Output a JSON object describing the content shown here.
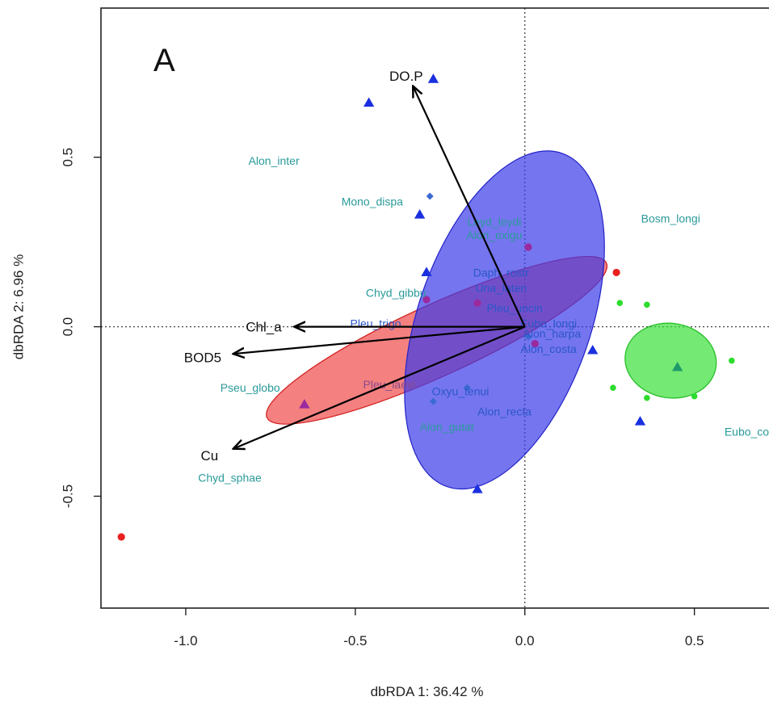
{
  "chart_data": {
    "type": "scatter",
    "panel_label": "A",
    "xlabel": "dbRDA 1: 36.42 %",
    "ylabel": "dbRDA 2: 6.96 %",
    "xlim": [
      -1.25,
      0.72
    ],
    "ylim": [
      -0.83,
      0.94
    ],
    "x_ticks": [
      -1.0,
      -0.5,
      0.0,
      0.5
    ],
    "x_tick_labels": [
      "-1.0",
      "-0.5",
      "0.0",
      "0.5"
    ],
    "y_ticks": [
      -0.5,
      0.0,
      0.5
    ],
    "y_tick_labels": [
      "-0.5",
      "0.0",
      "0.5"
    ],
    "origin_lines": true,
    "colors": {
      "red_group": "#e8211f",
      "blue_group": "#1a30e0",
      "green_group": "#2ddc2d",
      "purple_site": "#9a2a9e",
      "species_text": "#2a9a9a",
      "species_text_dark": "#2a57c8",
      "arrow": "#000000"
    },
    "ellipses": [
      {
        "group": "red",
        "cx": -0.26,
        "cy": -0.04,
        "rx": 0.55,
        "ry": 0.105,
        "angle_deg": 24.5,
        "fill": "#ef4a4a",
        "stroke": "#d21c1c"
      },
      {
        "group": "blue",
        "cx": -0.06,
        "cy": 0.02,
        "rx": 0.255,
        "ry": 0.52,
        "angle_deg": -19,
        "fill": "#3a3ae8",
        "stroke": "#2222c8"
      },
      {
        "group": "green",
        "cx": 0.43,
        "cy": -0.1,
        "rx": 0.135,
        "ry": 0.11,
        "angle_deg": -8,
        "fill": "#39e039",
        "stroke": "#22bb22"
      }
    ],
    "vectors": [
      {
        "label": "DO.P",
        "x": -0.33,
        "y": 0.71,
        "label_x": -0.35,
        "label_y": 0.74
      },
      {
        "label": "Chl_a",
        "x": -0.68,
        "y": 0.0,
        "label_x": -0.77,
        "label_y": 0.0
      },
      {
        "label": "BOD5",
        "x": -0.86,
        "y": -0.08,
        "label_x": -0.95,
        "label_y": -0.09
      },
      {
        "label": "Cu",
        "x": -0.86,
        "y": -0.36,
        "label_x": -0.93,
        "label_y": -0.38
      }
    ],
    "sites": [
      {
        "group": "blue",
        "shape": "triangle",
        "x": -0.27,
        "y": 0.73
      },
      {
        "group": "blue",
        "shape": "triangle",
        "x": -0.46,
        "y": 0.66
      },
      {
        "group": "blue",
        "shape": "triangle",
        "x": -0.31,
        "y": 0.33
      },
      {
        "group": "blue",
        "shape": "triangle",
        "x": -0.29,
        "y": 0.16
      },
      {
        "group": "blue",
        "shape": "triangle",
        "x": 0.2,
        "y": -0.07
      },
      {
        "group": "blue",
        "shape": "triangle",
        "x": 0.34,
        "y": -0.28
      },
      {
        "group": "blue",
        "shape": "triangle",
        "x": -0.14,
        "y": -0.48
      },
      {
        "group": "green",
        "shape": "triangle",
        "x": 0.45,
        "y": -0.12
      },
      {
        "group": "purple",
        "shape": "triangle",
        "x": -0.65,
        "y": -0.23
      },
      {
        "group": "red",
        "shape": "circle",
        "x": 0.27,
        "y": 0.16
      },
      {
        "group": "red",
        "shape": "circle",
        "x": -1.19,
        "y": -0.62
      },
      {
        "group": "green",
        "shape": "circle",
        "x": 0.28,
        "y": 0.07
      },
      {
        "group": "green",
        "shape": "circle",
        "x": 0.36,
        "y": 0.065
      },
      {
        "group": "green",
        "shape": "circle",
        "x": 0.61,
        "y": -0.1
      },
      {
        "group": "green",
        "shape": "circle",
        "x": 0.26,
        "y": -0.18
      },
      {
        "group": "green",
        "shape": "circle",
        "x": 0.36,
        "y": -0.21
      },
      {
        "group": "green",
        "shape": "circle",
        "x": 0.5,
        "y": -0.205
      },
      {
        "group": "purple",
        "shape": "circle",
        "x": 0.01,
        "y": 0.235
      },
      {
        "group": "purple",
        "shape": "circle",
        "x": -0.29,
        "y": 0.08
      },
      {
        "group": "purple",
        "shape": "circle",
        "x": -0.14,
        "y": 0.07
      },
      {
        "group": "purple",
        "shape": "circle",
        "x": 0.03,
        "y": -0.05
      },
      {
        "group": "blue",
        "shape": "diamond",
        "x": -0.28,
        "y": 0.385
      },
      {
        "group": "blue",
        "shape": "diamond",
        "x": 0.01,
        "y": -0.03
      },
      {
        "group": "blue",
        "shape": "diamond",
        "x": -0.27,
        "y": -0.22
      },
      {
        "group": "blue",
        "shape": "diamond",
        "x": -0.17,
        "y": -0.18
      }
    ],
    "species": [
      {
        "label": "Alon_inter",
        "x": -0.74,
        "y": 0.49,
        "tone": "light"
      },
      {
        "label": "Mono_dispa",
        "x": -0.45,
        "y": 0.37,
        "tone": "light"
      },
      {
        "label": "Leyd_leydi",
        "x": -0.09,
        "y": 0.31,
        "tone": "light"
      },
      {
        "label": "Alon_exigu",
        "x": -0.09,
        "y": 0.27,
        "tone": "light"
      },
      {
        "label": "Bosm_longi",
        "x": 0.43,
        "y": 0.32,
        "tone": "light"
      },
      {
        "label": "Daph_rostr",
        "x": -0.07,
        "y": 0.16,
        "tone": "dark"
      },
      {
        "label": "Una_laten",
        "x": -0.07,
        "y": 0.115,
        "tone": "dark"
      },
      {
        "label": "Chyd_gibbu",
        "x": -0.38,
        "y": 0.1,
        "tone": "light"
      },
      {
        "label": "Pleu_uncin",
        "x": -0.03,
        "y": 0.055,
        "tone": "dark"
      },
      {
        "label": "Pleu_trigo",
        "x": -0.44,
        "y": 0.01,
        "tone": "dark"
      },
      {
        "label": "Eubo_longi",
        "x": 0.07,
        "y": 0.01,
        "tone": "dark"
      },
      {
        "label": "Alon_harpa",
        "x": 0.08,
        "y": -0.02,
        "tone": "dark"
      },
      {
        "label": "Alon_costa",
        "x": 0.07,
        "y": -0.065,
        "tone": "dark"
      },
      {
        "label": "Pseu_globo",
        "x": -0.81,
        "y": -0.18,
        "tone": "light"
      },
      {
        "label": "Pleu_laevi",
        "x": -0.4,
        "y": -0.17,
        "tone": "purple"
      },
      {
        "label": "Oxyu_tenui",
        "x": -0.19,
        "y": -0.19,
        "tone": "dark"
      },
      {
        "label": "Alon_recta",
        "x": -0.06,
        "y": -0.25,
        "tone": "dark"
      },
      {
        "label": "Alon_gutat",
        "x": -0.23,
        "y": -0.295,
        "tone": "light"
      },
      {
        "label": "Eubo_cor",
        "x": 0.66,
        "y": -0.31,
        "tone": "light"
      },
      {
        "label": "Chyd_sphae",
        "x": -0.87,
        "y": -0.445,
        "tone": "light"
      }
    ]
  }
}
